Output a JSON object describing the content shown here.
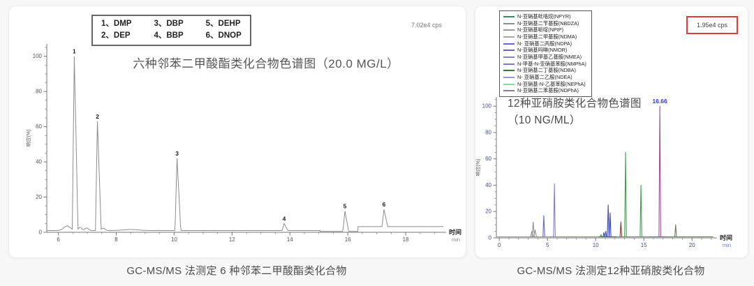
{
  "page": {
    "background": "#f7f7f8",
    "card_background": "#ffffff"
  },
  "left_panel": {
    "legend_items": [
      "1、DMP",
      "3、DBP",
      "5、DEHP",
      "2、DEP",
      "4、BBP",
      "6、DNOP"
    ],
    "cps_label": "7.02e4 cps",
    "title": "六种邻苯二甲酸酯类化合物色谱图（20.0 MG/L）",
    "caption": "GC-MS/MS 法测定 6 种邻苯二甲酸酯类化合物"
  },
  "right_panel": {
    "legend_items": [
      {
        "label": "N-亚硝基吡咯烷(NPYR)",
        "color": "#3d8b4f"
      },
      {
        "label": "N-亚硝基二苄基胺(NBDZA)",
        "color": "#8a8f8a"
      },
      {
        "label": "N-亚硝基哌啶(NPIP)",
        "color": "#9a9a9a"
      },
      {
        "label": "N-亚硝基二甲基胺(NDMA)",
        "color": "#a8a8a8"
      },
      {
        "label": "N- 亚硝基二丙胺(NDPA)",
        "color": "#5a6bd8"
      },
      {
        "label": "N-亚硝基吗啉(NMOR)",
        "color": "#6a5fd0"
      },
      {
        "label": "N-亚硝基甲基乙基胺(NMEA)",
        "color": "#7d85dd"
      },
      {
        "label": "N-甲基-N-亚硝基苯胺(NMPhA)",
        "color": "#6f7bd8"
      },
      {
        "label": "N-亚硝基二丁基胺(NDBA)",
        "color": "#2e7d3c"
      },
      {
        "label": "N- 亚硝基二乙胺(NDEA)",
        "color": "#9a8fe0"
      },
      {
        "label": "N-亚硝基-N-乙基苯胺(NEPhA)",
        "color": "#86d6a0"
      },
      {
        "label": "N-亚硝基二苯基胺(NDPhA)",
        "color": "#9e6fa0"
      }
    ],
    "cps_label": "1.95e4 cps",
    "cps_box_color": "#e03a3a",
    "title_line1": "12种亚硝胺类化合物色谱图",
    "title_line2": "（10 NG/ML）",
    "caption": "GC-MS/MS 法测定12种亚硝胺类化合物"
  },
  "chart_data": [
    {
      "type": "line",
      "render": "single",
      "title": "六种邻苯二甲酸酯类化合物色谱图（20.0 MG/L）",
      "legend": [
        "1、DMP",
        "2、DEP",
        "3、DBP",
        "4、BBP",
        "5、DEHP",
        "6、DNOP"
      ],
      "xlabel": "时间",
      "xunit": "min",
      "ylabel": "响应(%)",
      "xlim": [
        5.6,
        19.3
      ],
      "ylim": [
        0,
        107
      ],
      "x_major_ticks": [
        6,
        8,
        10,
        12,
        14,
        16,
        18
      ],
      "x_minor": 0.5,
      "y_major_ticks": [
        0,
        20,
        40,
        60,
        80,
        100
      ],
      "y_minor": 5,
      "axis_color": "#777777",
      "tick_color": "#555555",
      "xunit_color": "#888888",
      "line_color": "#8c8c8c",
      "peak_label_color": "#1a1a1a",
      "annotation": "7.02e4 cps",
      "baseline_segments": [
        {
          "from": 5.6,
          "to": 15.05,
          "level": 1.0
        },
        {
          "from": 15.05,
          "to": 16.35,
          "level": 0.5
        },
        {
          "from": 16.35,
          "to": 19.3,
          "level": 3.2
        }
      ],
      "humps": [
        {
          "c": 6.3,
          "s": 0.16,
          "h": 2.6
        },
        {
          "c": 6.75,
          "s": 0.08,
          "h": 1.8
        },
        {
          "c": 6.98,
          "s": 0.09,
          "h": 1.4
        },
        {
          "c": 7.55,
          "s": 0.09,
          "h": 1.3
        },
        {
          "c": 8.5,
          "s": 0.35,
          "h": 0.6
        }
      ],
      "peaks": [
        {
          "t": 6.55,
          "height": 100,
          "label": "1"
        },
        {
          "t": 7.35,
          "height": 63,
          "label": "2"
        },
        {
          "t": 10.1,
          "height": 42,
          "label": "3"
        },
        {
          "t": 13.8,
          "height": 5,
          "label": "4"
        },
        {
          "t": 15.9,
          "height": 12,
          "label": "5"
        },
        {
          "t": 17.25,
          "height": 13,
          "label": "6"
        }
      ]
    },
    {
      "type": "line",
      "render": "multi",
      "title": "12种亚硝胺类化合物色谱图（10 NG/ML）",
      "xlabel": "时间",
      "xunit": "min",
      "ylabel": "响应(%)",
      "xlim": [
        -0.3,
        22.3
      ],
      "ylim": [
        0,
        107
      ],
      "x_major_ticks": [
        0,
        5,
        10,
        15,
        20
      ],
      "x_minor": 1,
      "y_major_ticks": [
        0,
        20,
        40,
        60,
        80,
        100
      ],
      "y_minor": 5,
      "axis_color": "#777777",
      "tick_color": "#44507a",
      "xunit_color": "#5b7bd5",
      "annotation": "1.95e4 cps",
      "baseline_segments": [
        {
          "from": -0.2,
          "to": 5.2,
          "level": 0.8,
          "color": "#909090"
        },
        {
          "from": 5.2,
          "to": 10.35,
          "level": 0.8,
          "color": "#8878e0"
        },
        {
          "from": 10.35,
          "to": 12.2,
          "level": 0.8,
          "color": "#3a4ab0"
        },
        {
          "from": 12.2,
          "to": 15.6,
          "level": 0.8,
          "color": "#3f9e4a"
        },
        {
          "from": 15.6,
          "to": 17.5,
          "level": 0.8,
          "color": "#8f4a86"
        },
        {
          "from": 17.5,
          "to": 22.2,
          "level": 0.8,
          "color": "#5a7a52"
        }
      ],
      "peaks": [
        {
          "t": 3.38,
          "height": 5,
          "color": "#909090",
          "w": 0.14
        },
        {
          "t": 3.52,
          "height": 12,
          "color": "#909090",
          "w": 0.12
        },
        {
          "t": 3.72,
          "height": 6,
          "color": "#909090",
          "w": 0.14
        },
        {
          "t": 4.62,
          "height": 17,
          "color": "#5a6bd8"
        },
        {
          "t": 5.72,
          "height": 41,
          "color": "#8878e0"
        },
        {
          "t": 10.55,
          "height": 2.5,
          "color": "#3f9e4a"
        },
        {
          "t": 10.85,
          "height": 4,
          "color": "#3a4ab0"
        },
        {
          "t": 11.05,
          "height": 5,
          "color": "#3a4ab0"
        },
        {
          "t": 11.3,
          "height": 25,
          "color": "#3a4ab0"
        },
        {
          "t": 11.5,
          "height": 19,
          "color": "#3a4ab0"
        },
        {
          "t": 12.62,
          "height": 12,
          "color": "#7a4040"
        },
        {
          "t": 13.1,
          "height": 65,
          "color": "#3f9e4a"
        },
        {
          "t": 14.7,
          "height": 40,
          "color": "#3f9e4a"
        },
        {
          "t": 16.66,
          "height": 100,
          "color": "#9e4f92",
          "label": "16.66",
          "label_color": "#3535e0"
        },
        {
          "t": 18.3,
          "height": 10,
          "color": "#6b7d5a"
        }
      ]
    }
  ]
}
